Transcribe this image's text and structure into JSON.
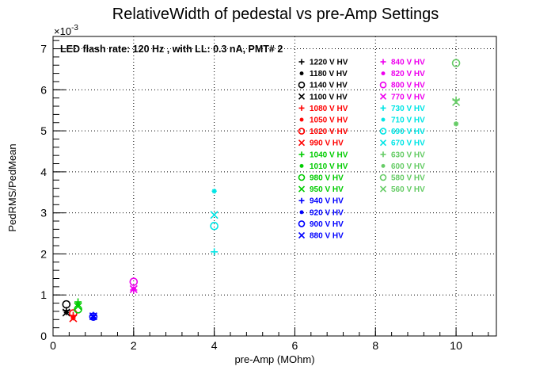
{
  "chart_data": {
    "type": "scatter",
    "title": "RelativeWidth of pedestal vs pre-Amp Settings",
    "xlabel": "pre-Amp (MOhm)",
    "ylabel": "PedRMS/PedMean",
    "y_multiplier_label": "×10",
    "y_multiplier_exp": "-3",
    "xlim": [
      0,
      11
    ],
    "ylim": [
      0,
      7.3
    ],
    "x_ticks": [
      0,
      2,
      4,
      6,
      8,
      10
    ],
    "y_ticks": [
      0,
      1,
      2,
      3,
      4,
      5,
      6,
      7
    ],
    "grid": true,
    "annotation": "LED flash rate: 120 Hz , with LL: 0.3 nA, PMT# 2",
    "legend_position": "top-right",
    "series": [
      {
        "name": "1220 V HV",
        "color": "#000000",
        "marker": "plus",
        "x": [
          0.33
        ],
        "y": [
          0.62
        ]
      },
      {
        "name": "1180 V HV",
        "color": "#000000",
        "marker": "star",
        "x": [
          0.33
        ],
        "y": [
          0.57
        ]
      },
      {
        "name": "1140 V HV",
        "color": "#000000",
        "marker": "circle",
        "x": [
          0.33
        ],
        "y": [
          0.77
        ]
      },
      {
        "name": "1100 V HV",
        "color": "#000000",
        "marker": "x",
        "x": [
          0.33
        ],
        "y": [
          0.57
        ]
      },
      {
        "name": "1080 V HV",
        "color": "#ff0000",
        "marker": "plus",
        "x": [
          0.5
        ],
        "y": [
          0.5
        ]
      },
      {
        "name": "1050 V HV",
        "color": "#ff0000",
        "marker": "star",
        "x": [
          0.5
        ],
        "y": [
          0.44
        ]
      },
      {
        "name": "1020 V HV",
        "color": "#ff0000",
        "marker": "circle",
        "x": [
          0.5
        ],
        "y": [
          0.55
        ]
      },
      {
        "name": "990 V HV",
        "color": "#ff0000",
        "marker": "x",
        "x": [
          0.5
        ],
        "y": [
          0.43
        ]
      },
      {
        "name": "1040 V HV",
        "color": "#00cc00",
        "marker": "plus",
        "x": [
          0.62
        ],
        "y": [
          0.83
        ]
      },
      {
        "name": "1010 V HV",
        "color": "#00cc00",
        "marker": "star",
        "x": [
          0.62
        ],
        "y": [
          0.77
        ]
      },
      {
        "name": "980 V HV",
        "color": "#00cc00",
        "marker": "circle",
        "x": [
          0.62
        ],
        "y": [
          0.65
        ]
      },
      {
        "name": "950 V HV",
        "color": "#00cc00",
        "marker": "x",
        "x": [
          0.62
        ],
        "y": [
          0.72
        ]
      },
      {
        "name": "940 V HV",
        "color": "#0000ff",
        "marker": "plus",
        "x": [
          1.0
        ],
        "y": [
          0.5
        ]
      },
      {
        "name": "920 V HV",
        "color": "#0000ff",
        "marker": "star",
        "x": [
          1.0
        ],
        "y": [
          0.45
        ]
      },
      {
        "name": "900 V HV",
        "color": "#0000ff",
        "marker": "circle",
        "x": [
          1.0
        ],
        "y": [
          0.47
        ]
      },
      {
        "name": "880 V HV",
        "color": "#0000ff",
        "marker": "x",
        "x": [
          1.0
        ],
        "y": [
          0.48
        ]
      },
      {
        "name": "840 V HV",
        "color": "#ee00ee",
        "marker": "plus",
        "x": [
          2.0
        ],
        "y": [
          1.12
        ]
      },
      {
        "name": "820 V HV",
        "color": "#ee00ee",
        "marker": "star",
        "x": [
          2.0
        ],
        "y": [
          1.15
        ]
      },
      {
        "name": "800 V HV",
        "color": "#ee00ee",
        "marker": "circle",
        "x": [
          2.0
        ],
        "y": [
          1.32
        ]
      },
      {
        "name": "770 V HV",
        "color": "#ee00ee",
        "marker": "x",
        "x": [
          2.0
        ],
        "y": [
          1.14
        ]
      },
      {
        "name": "730 V HV",
        "color": "#00e5e5",
        "marker": "plus",
        "x": [
          4.0
        ],
        "y": [
          2.05
        ]
      },
      {
        "name": "710 V HV",
        "color": "#00e5e5",
        "marker": "star",
        "x": [
          4.0
        ],
        "y": [
          3.53
        ]
      },
      {
        "name": "690 V HV",
        "color": "#00e5e5",
        "marker": "circle",
        "x": [
          4.0
        ],
        "y": [
          2.68
        ]
      },
      {
        "name": "670 V HV",
        "color": "#00e5e5",
        "marker": "x",
        "x": [
          4.0
        ],
        "y": [
          2.95
        ]
      },
      {
        "name": "630 V HV",
        "color": "#66cc66",
        "marker": "plus",
        "x": [
          10.0
        ],
        "y": [
          5.75
        ]
      },
      {
        "name": "600 V HV",
        "color": "#66cc66",
        "marker": "star",
        "x": [
          10.0
        ],
        "y": [
          5.17
        ]
      },
      {
        "name": "580 V HV",
        "color": "#66cc66",
        "marker": "circle",
        "x": [
          10.0
        ],
        "y": [
          6.65
        ]
      },
      {
        "name": "560 V HV",
        "color": "#66cc66",
        "marker": "x",
        "x": [
          10.0
        ],
        "y": [
          5.7
        ]
      }
    ]
  }
}
